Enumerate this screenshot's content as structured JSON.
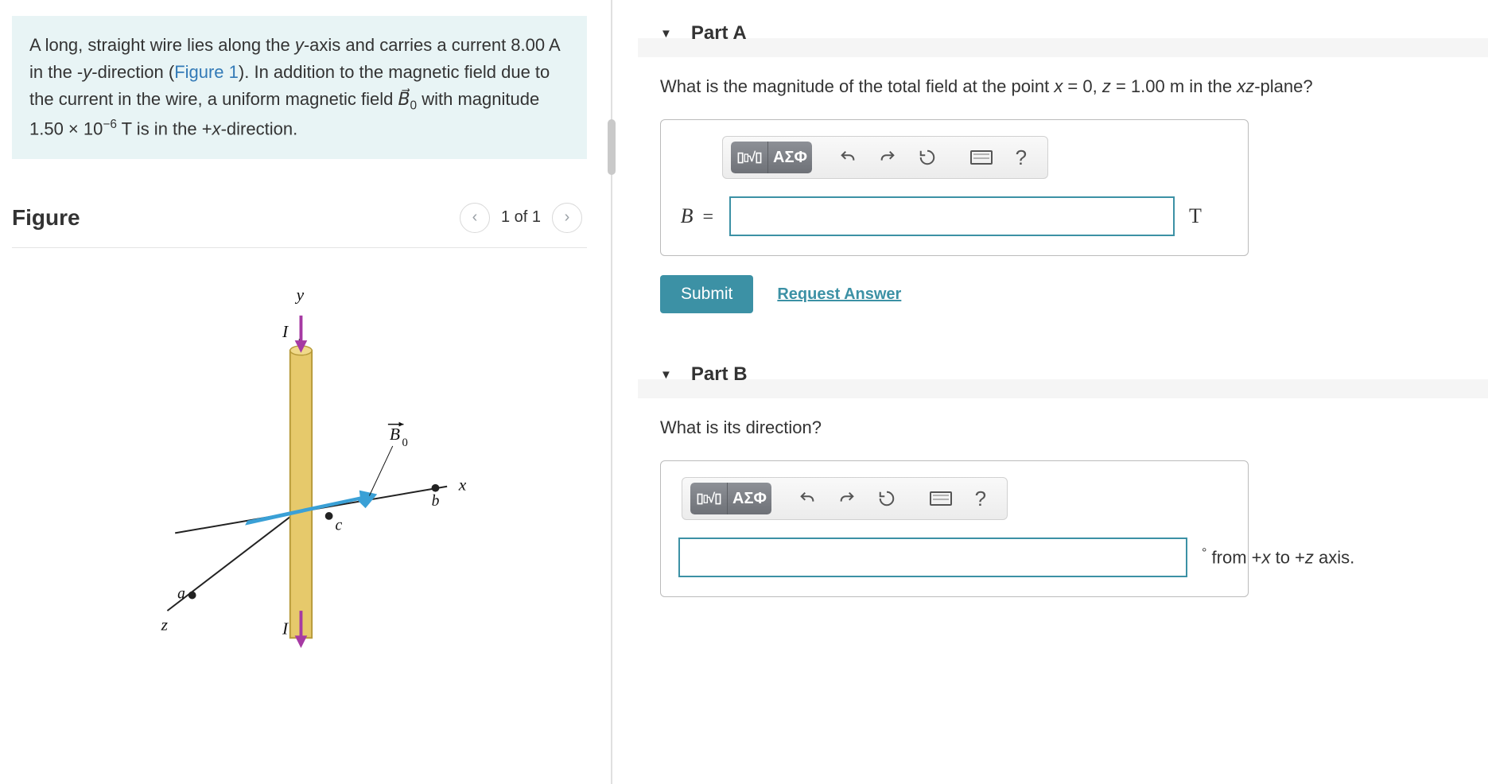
{
  "problem": {
    "html": "A long, straight wire lies along the <i>y</i>-axis and carries a current 8.00 A in the -<i>y</i>-direction (<span class=\"fig-link\">Figure 1</span>). In addition to the magnetic field due to the current in the wire, a uniform magnetic field <span class=\"vec\">B&#8407;</span><span class=\"sub\">0</span> with magnitude 1.50 × 10<span class=\"sup\">−6</span> T is in the +<i>x</i>-direction.",
    "current_A": 8.0,
    "B0_T": 1.5e-06,
    "B0_text": "1.50 × 10⁻⁶",
    "direction_current": "-y",
    "direction_B0": "+x"
  },
  "figure": {
    "title": "Figure",
    "index_label": "1 of 1",
    "axis_labels": {
      "x": "x",
      "y": "y",
      "z": "z"
    },
    "point_labels": {
      "a": "a",
      "b": "b",
      "c": "c"
    },
    "current_label": "I",
    "B0_label": "B₀",
    "colors": {
      "axis": "#222222",
      "wire_fill": "#e6c96b",
      "wire_edge": "#b79a3a",
      "current_arrow": "#a63aa3",
      "B0_arrow": "#3aa0d6",
      "point_fill": "#222222"
    }
  },
  "parts": {
    "A": {
      "title": "Part A",
      "question_html": "What is the magnitude of the total field at the point <i>x</i> = 0, <i>z</i> = 1.00 m in the <i>xz</i>-plane?",
      "input_prefix": "B",
      "input_value": "",
      "input_suffix": "T",
      "submit_label": "Submit",
      "request_label": "Request Answer"
    },
    "B": {
      "title": "Part B",
      "question_html": "What is its direction?",
      "input_value": "",
      "suffix_html": "<span class=\"deg\">°</span> from +<i>x</i> to +<i>z</i> axis."
    }
  },
  "toolbar": {
    "templates": "▯√▯",
    "greek": "ΑΣΦ",
    "undo": "undo",
    "redo": "redo",
    "reset": "reset",
    "keyboard": "keyboard",
    "help": "?"
  },
  "colors": {
    "problem_bg": "#e8f4f5",
    "link": "#337ab7",
    "submit_bg": "#3c91a5",
    "input_border": "#3c91a5",
    "toolbar_dark": "#7b7e84"
  }
}
